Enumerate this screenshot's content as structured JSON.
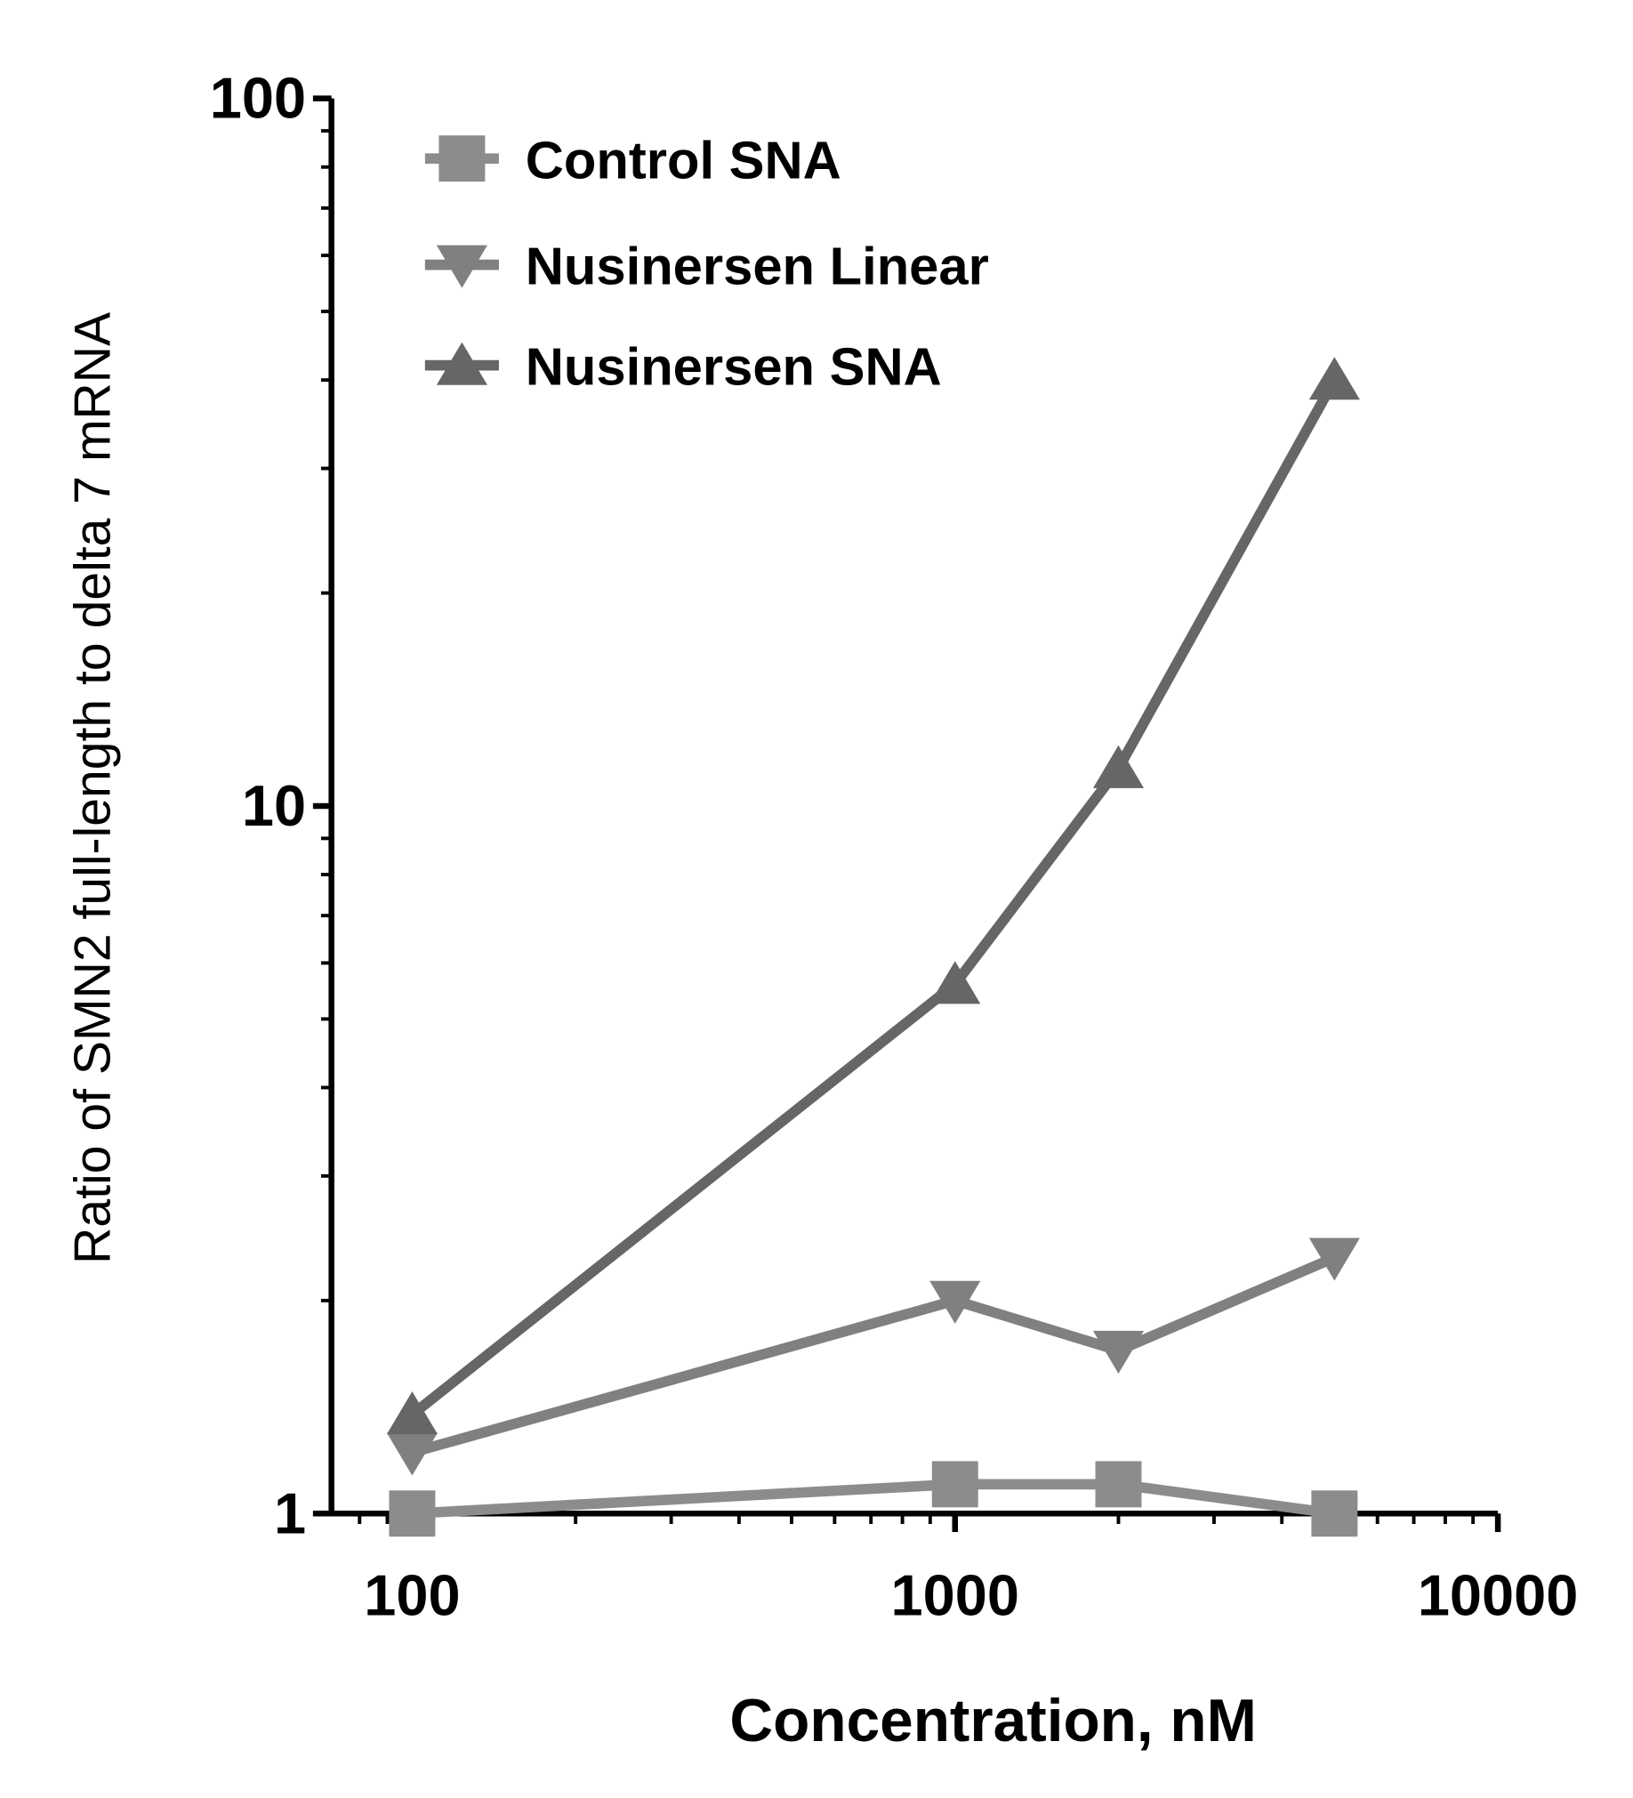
{
  "chart_data": {
    "type": "line",
    "title": "",
    "xlabel": "Concentration, nM",
    "ylabel": "Ratio of SMN2 full-length to delta 7 mRNA",
    "xscale": "log",
    "yscale": "log",
    "xlim": [
      71,
      10000
    ],
    "ylim": [
      1,
      100
    ],
    "xticks": [
      "100",
      "1000",
      "10000"
    ],
    "yticks": [
      "1",
      "10",
      "100"
    ],
    "grid": false,
    "legend_position": "top-left",
    "x": [
      100,
      1000,
      2000,
      5000
    ],
    "series": [
      {
        "name": "Control SNA",
        "marker": "square",
        "color": "#8c8c8c",
        "values": [
          1.0,
          1.1,
          1.1,
          1.0
        ]
      },
      {
        "name": "Nusinersen Linear",
        "marker": "triangle-down",
        "color": "#808080",
        "values": [
          1.22,
          2.0,
          1.7,
          2.3
        ]
      },
      {
        "name": "Nusinersen SNA",
        "marker": "triangle-up",
        "color": "#666666",
        "values": [
          1.38,
          5.6,
          11.3,
          40
        ]
      }
    ]
  }
}
